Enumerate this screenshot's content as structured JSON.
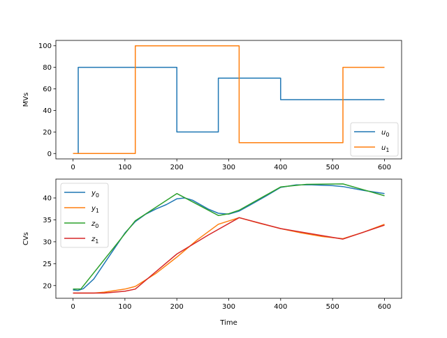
{
  "chart_data": [
    {
      "type": "line",
      "title": "",
      "xlabel": "",
      "ylabel": "MVs",
      "xlim": [
        -33,
        633
      ],
      "ylim": [
        -5,
        105
      ],
      "xticks": [
        0,
        100,
        200,
        300,
        400,
        500,
        600
      ],
      "yticks": [
        0,
        20,
        40,
        60,
        80,
        100
      ],
      "legend": {
        "placement": "lower-right"
      },
      "series": [
        {
          "name": "u",
          "sub": "0",
          "color": "#1f77b4",
          "step": true,
          "points": [
            [
              0,
              0
            ],
            [
              10,
              0
            ],
            [
              10,
              80
            ],
            [
              200,
              80
            ],
            [
              200,
              20
            ],
            [
              280,
              20
            ],
            [
              280,
              70
            ],
            [
              400,
              70
            ],
            [
              400,
              50
            ],
            [
              600,
              50
            ]
          ]
        },
        {
          "name": "u",
          "sub": "1",
          "color": "#ff7f0e",
          "step": true,
          "points": [
            [
              0,
              0
            ],
            [
              120,
              0
            ],
            [
              120,
              100
            ],
            [
              320,
              100
            ],
            [
              320,
              10
            ],
            [
              520,
              10
            ],
            [
              520,
              80
            ],
            [
              600,
              80
            ]
          ]
        }
      ]
    },
    {
      "type": "line",
      "title": "",
      "xlabel": "Time",
      "ylabel": "CVs",
      "xlim": [
        -33,
        633
      ],
      "ylim": [
        17.1,
        44.3
      ],
      "xticks": [
        0,
        100,
        200,
        300,
        400,
        500,
        600
      ],
      "yticks": [
        20,
        25,
        30,
        35,
        40
      ],
      "legend": {
        "placement": "upper-left"
      },
      "series": [
        {
          "name": "y",
          "sub": "0",
          "color": "#1f77b4",
          "points": [
            [
              0,
              19
            ],
            [
              10,
              18.9
            ],
            [
              20,
              19.3
            ],
            [
              40,
              21.5
            ],
            [
              60,
              25
            ],
            [
              80,
              28.5
            ],
            [
              100,
              32
            ],
            [
              120,
              34.6
            ],
            [
              140,
              36.3
            ],
            [
              160,
              37.5
            ],
            [
              180,
              38.5
            ],
            [
              200,
              39.8
            ],
            [
              215,
              40
            ],
            [
              230,
              39.5
            ],
            [
              260,
              37.5
            ],
            [
              280,
              36.5
            ],
            [
              300,
              36.3
            ],
            [
              320,
              37
            ],
            [
              340,
              38.3
            ],
            [
              370,
              40.3
            ],
            [
              400,
              42.4
            ],
            [
              430,
              43
            ],
            [
              460,
              43
            ],
            [
              500,
              42.8
            ],
            [
              520,
              42.6
            ],
            [
              560,
              41.7
            ],
            [
              600,
              41
            ]
          ]
        },
        {
          "name": "y",
          "sub": "1",
          "color": "#ff7f0e",
          "points": [
            [
              0,
              18.3
            ],
            [
              40,
              18.3
            ],
            [
              60,
              18.5
            ],
            [
              100,
              19.2
            ],
            [
              120,
              19.8
            ],
            [
              160,
              22.8
            ],
            [
              200,
              26.5
            ],
            [
              240,
              30.5
            ],
            [
              280,
              34
            ],
            [
              320,
              35.5
            ],
            [
              360,
              34.2
            ],
            [
              400,
              33
            ],
            [
              440,
              32
            ],
            [
              480,
              31.2
            ],
            [
              520,
              30.7
            ],
            [
              560,
              32.2
            ],
            [
              600,
              34
            ]
          ]
        },
        {
          "name": "z",
          "sub": "0",
          "color": "#2ca02c",
          "points": [
            [
              0,
              19.2
            ],
            [
              15,
              19.2
            ],
            [
              120,
              34.8
            ],
            [
              200,
              41
            ],
            [
              280,
              36
            ],
            [
              300,
              36.4
            ],
            [
              320,
              37.2
            ],
            [
              400,
              42.5
            ],
            [
              450,
              43.1
            ],
            [
              520,
              43.2
            ],
            [
              600,
              40.5
            ]
          ]
        },
        {
          "name": "z",
          "sub": "1",
          "color": "#d62728",
          "points": [
            [
              0,
              18.3
            ],
            [
              60,
              18.3
            ],
            [
              100,
              18.7
            ],
            [
              120,
              19.2
            ],
            [
              200,
              27.2
            ],
            [
              260,
              31.5
            ],
            [
              320,
              35.5
            ],
            [
              400,
              33
            ],
            [
              520,
              30.6
            ],
            [
              600,
              33.8
            ]
          ]
        }
      ]
    }
  ]
}
